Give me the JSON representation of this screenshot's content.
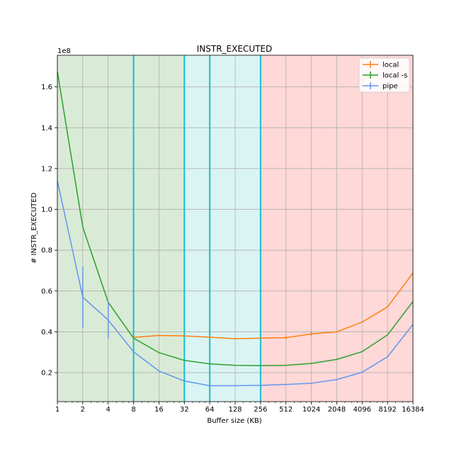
{
  "chart_data": {
    "type": "line",
    "title": "INSTR_EXECUTED",
    "xlabel": "Buffer size (KB)",
    "ylabel": "# INSTR_EXECUTED",
    "x_scale": "log2",
    "y_offset_label": "1e8",
    "x": [
      1,
      2,
      4,
      8,
      16,
      32,
      64,
      128,
      256,
      512,
      1024,
      2048,
      4096,
      8192,
      16384
    ],
    "x_tick_labels": [
      "1",
      "2",
      "4",
      "8",
      "16",
      "32",
      "64",
      "128",
      "256",
      "512",
      "1024",
      "2048",
      "4096",
      "8192",
      "16384"
    ],
    "y_ticks": [
      0.2,
      0.4,
      0.6,
      0.8,
      1.0,
      1.2,
      1.4,
      1.6
    ],
    "y_tick_labels": [
      "0.2",
      "0.4",
      "0.6",
      "0.8",
      "1.0",
      "1.2",
      "1.4",
      "1.6"
    ],
    "xlim": [
      1,
      16384
    ],
    "ylim": [
      0.058,
      1.755
    ],
    "grid": true,
    "legend_position": "top-right",
    "regions": [
      {
        "from": 1,
        "to": 32,
        "color": "#d9ebd6"
      },
      {
        "from": 32,
        "to": 256,
        "color": "#daf4f4"
      },
      {
        "from": 256,
        "to": 16384,
        "color": "#ffd8d8"
      }
    ],
    "vlines": [
      8,
      32,
      64,
      256
    ],
    "vline_color": "#17becf",
    "series": [
      {
        "name": "local",
        "color": "#ff7f0e",
        "x": [
          8,
          16,
          32,
          64,
          128,
          256,
          512,
          1024,
          2048,
          4096,
          8192,
          16384
        ],
        "values": [
          0.373,
          0.382,
          0.38,
          0.374,
          0.366,
          0.369,
          0.371,
          0.39,
          0.4,
          0.448,
          0.522,
          0.688
        ],
        "errors": [
          0,
          0,
          0,
          0,
          0,
          0,
          0.008,
          0.012,
          0,
          0,
          0,
          0
        ]
      },
      {
        "name": "local -s",
        "color": "#2ca02c",
        "x": [
          1,
          2,
          4,
          8,
          16,
          32,
          64,
          128,
          256,
          512,
          1024,
          2048,
          4096,
          8192,
          16384
        ],
        "values": [
          1.675,
          0.913,
          0.545,
          0.369,
          0.298,
          0.26,
          0.243,
          0.236,
          0.234,
          0.236,
          0.245,
          0.265,
          0.303,
          0.385,
          0.549
        ],
        "errors": [
          0,
          0,
          0,
          0,
          0,
          0,
          0,
          0,
          0,
          0,
          0,
          0,
          0,
          0,
          0
        ]
      },
      {
        "name": "pipe",
        "color": "#6495ed",
        "x": [
          1,
          2,
          4,
          8,
          16,
          32,
          64,
          128,
          256,
          512,
          1024,
          2048,
          4096,
          8192,
          16384
        ],
        "values": [
          1.14,
          0.57,
          0.458,
          0.302,
          0.208,
          0.159,
          0.136,
          0.136,
          0.138,
          0.142,
          0.148,
          0.166,
          0.202,
          0.278,
          0.436
        ],
        "errors": [
          0,
          0.15,
          0.09,
          0,
          0,
          0,
          0,
          0,
          0,
          0,
          0,
          0,
          0,
          0,
          0
        ]
      }
    ]
  }
}
